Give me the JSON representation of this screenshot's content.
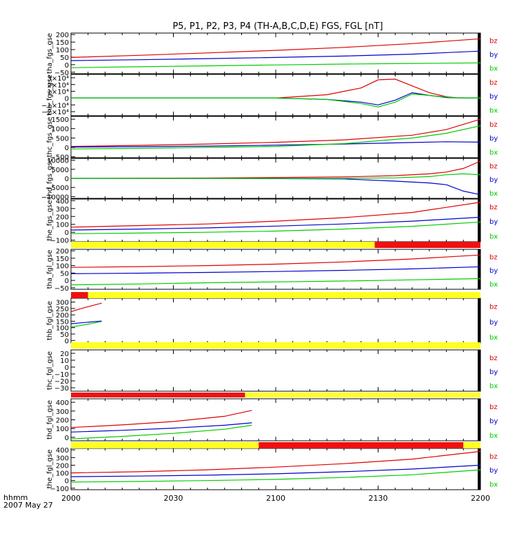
{
  "title": "P5, P1, P2, P3, P4 (TH-A,B,C,D,E) FGS, FGL [nT]",
  "time_axis": {
    "unit_label": "hhmm",
    "date_label": "2007 May 27",
    "ticks": [
      "2000",
      "2030",
      "2100",
      "2130",
      "2200"
    ]
  },
  "colors": {
    "bx": "#00cc00",
    "by": "#0000cc",
    "bz": "#dd0000",
    "bar_yellow": "#ffff22",
    "bar_red": "#ee1111"
  },
  "chart_data": [
    {
      "type": "line",
      "ylabel": "tha_fgs_gse",
      "ylim": [
        -60,
        210
      ],
      "yticks": [
        200,
        150,
        100,
        50,
        0,
        -50
      ],
      "ytick_labels": [
        "200",
        "150",
        "100",
        "50",
        "0",
        "−50"
      ],
      "x_minutes": [
        0,
        20,
        40,
        60,
        80,
        100,
        120
      ],
      "series": [
        {
          "name": "bz",
          "values": [
            48,
            62,
            78,
            95,
            115,
            140,
            172
          ]
        },
        {
          "name": "by",
          "values": [
            27,
            33,
            40,
            48,
            57,
            70,
            90
          ]
        },
        {
          "name": "bx",
          "values": [
            -20,
            -14,
            -8,
            -2,
            4,
            8,
            12
          ]
        }
      ]
    },
    {
      "type": "line",
      "ylabel": "thb_fgs_gse",
      "ylim": [
        -26000,
        35000
      ],
      "yticks": [
        30000,
        20000,
        10000,
        0,
        -10000,
        -20000
      ],
      "ytick_labels": [
        "3×10⁴",
        "2×10⁴",
        "1×10⁴",
        "0",
        "−1×10⁴",
        "−2×10⁴"
      ],
      "x_minutes": [
        0,
        30,
        60,
        75,
        85,
        90,
        95,
        100,
        105,
        110,
        113,
        120
      ],
      "series": [
        {
          "name": "bz",
          "values": [
            0,
            0,
            0,
            5000,
            15000,
            27000,
            28000,
            18000,
            8000,
            2000,
            500,
            0
          ]
        },
        {
          "name": "by",
          "values": [
            0,
            0,
            0,
            -2000,
            -6000,
            -10000,
            -3000,
            8000,
            4000,
            800,
            200,
            0
          ]
        },
        {
          "name": "bx",
          "values": [
            0,
            0,
            0,
            -2000,
            -8000,
            -13000,
            -6000,
            6000,
            4000,
            1500,
            400,
            0
          ]
        }
      ]
    },
    {
      "type": "line",
      "ylabel": "thc_fgs_gse",
      "ylim": [
        -550,
        1650
      ],
      "yticks": [
        1500,
        1000,
        500,
        0,
        -500
      ],
      "ytick_labels": [
        "1500",
        "1000",
        "500",
        "0",
        "−500"
      ],
      "x_minutes": [
        0,
        20,
        40,
        60,
        80,
        100,
        110,
        120
      ],
      "series": [
        {
          "name": "bz",
          "values": [
            50,
            110,
            180,
            270,
            400,
            650,
            950,
            1500
          ]
        },
        {
          "name": "by",
          "values": [
            20,
            40,
            70,
            120,
            180,
            260,
            300,
            280
          ]
        },
        {
          "name": "bx",
          "values": [
            -80,
            -50,
            0,
            50,
            200,
            500,
            750,
            1150
          ]
        }
      ]
    },
    {
      "type": "line",
      "ylabel": "thd_fgs_gse",
      "ylim": [
        -11000,
        11000
      ],
      "yticks": [
        10000,
        5000,
        0,
        -5000,
        -10000
      ],
      "ytick_labels": [
        "10000",
        "5000",
        "0",
        "−5000",
        "−10000"
      ],
      "x_minutes": [
        0,
        40,
        80,
        95,
        105,
        110,
        115,
        120
      ],
      "series": [
        {
          "name": "bz",
          "values": [
            0,
            200,
            800,
            1500,
            2500,
            3500,
            5500,
            9500
          ]
        },
        {
          "name": "by",
          "values": [
            0,
            0,
            -300,
            -1500,
            -2500,
            -3500,
            -7000,
            -9000
          ]
        },
        {
          "name": "bx",
          "values": [
            0,
            0,
            0,
            300,
            1000,
            2000,
            2500,
            2000
          ]
        }
      ]
    },
    {
      "type": "line",
      "ylabel": "the_fgs_gse",
      "ylim": [
        -120,
        420
      ],
      "yticks": [
        400,
        300,
        200,
        100,
        0,
        -100
      ],
      "ytick_labels": [
        "400",
        "300",
        "200",
        "100",
        "0",
        "−100"
      ],
      "x_minutes": [
        0,
        20,
        40,
        60,
        80,
        100,
        120
      ],
      "series": [
        {
          "name": "bz",
          "values": [
            65,
            85,
            105,
            140,
            185,
            250,
            380
          ]
        },
        {
          "name": "by",
          "values": [
            28,
            40,
            55,
            78,
            105,
            140,
            190
          ]
        },
        {
          "name": "bx",
          "values": [
            -18,
            -10,
            0,
            15,
            40,
            75,
            130
          ]
        }
      ]
    },
    {
      "type": "line",
      "ylabel": "tha_fgl_gse",
      "ylim": [
        -60,
        210
      ],
      "yticks": [
        200,
        150,
        100,
        50,
        0,
        -50
      ],
      "ytick_labels": [
        "200",
        "150",
        "100",
        "50",
        "0",
        "−50"
      ],
      "x_minutes": [
        0,
        20,
        40,
        60,
        80,
        100,
        120
      ],
      "series": [
        {
          "name": "bz",
          "values": [
            88,
            93,
            100,
            110,
            125,
            145,
            172
          ]
        },
        {
          "name": "by",
          "values": [
            45,
            49,
            54,
            60,
            68,
            78,
            92
          ]
        },
        {
          "name": "bx",
          "values": [
            -30,
            -24,
            -16,
            -10,
            -4,
            4,
            12
          ]
        }
      ]
    },
    {
      "type": "line",
      "ylabel": "thb_fgl_gse",
      "ylim": [
        -20,
        330
      ],
      "yticks": [
        300,
        250,
        200,
        150,
        100,
        50,
        0
      ],
      "ytick_labels": [
        "300",
        "250",
        "200",
        "150",
        "100",
        "50",
        "0"
      ],
      "x_minutes": [
        0,
        3,
        6,
        9
      ],
      "series": [
        {
          "name": "bz",
          "values": [
            225,
            250,
            270,
            292
          ]
        },
        {
          "name": "by",
          "values": [
            130,
            138,
            145,
            152
          ]
        },
        {
          "name": "bx",
          "values": [
            105,
            118,
            132,
            148
          ]
        }
      ]
    },
    {
      "type": "line",
      "ylabel": "thc_fgl_gse",
      "ylim": [
        -35,
        25
      ],
      "yticks": [
        20,
        10,
        0,
        -10,
        -20,
        -30
      ],
      "ytick_labels": [
        "20",
        "10",
        "0",
        "−10",
        "−20",
        "−30"
      ],
      "x_minutes": [],
      "series": [
        {
          "name": "bz",
          "values": []
        },
        {
          "name": "by",
          "values": []
        },
        {
          "name": "bx",
          "values": []
        }
      ]
    },
    {
      "type": "line",
      "ylabel": "thd_fgl_gse",
      "ylim": [
        -40,
        440
      ],
      "yticks": [
        400,
        300,
        200,
        100,
        0
      ],
      "ytick_labels": [
        "400",
        "300",
        "200",
        "100",
        "0"
      ],
      "x_minutes": [
        0,
        15,
        30,
        45,
        53
      ],
      "series": [
        {
          "name": "bz",
          "values": [
            112,
            142,
            180,
            240,
            308
          ]
        },
        {
          "name": "by",
          "values": [
            60,
            80,
            105,
            138,
            165
          ]
        },
        {
          "name": "bx",
          "values": [
            -18,
            10,
            45,
            92,
            138
          ]
        }
      ]
    },
    {
      "type": "line",
      "ylabel": "the_fgl_gse",
      "ylim": [
        -120,
        420
      ],
      "yticks": [
        400,
        300,
        200,
        100,
        0,
        -100
      ],
      "ytick_labels": [
        "400",
        "300",
        "200",
        "100",
        "0",
        "−100"
      ],
      "x_minutes": [
        0,
        20,
        40,
        60,
        80,
        100,
        120
      ],
      "series": [
        {
          "name": "bz",
          "values": [
            100,
            115,
            140,
            175,
            220,
            280,
            380
          ]
        },
        {
          "name": "by",
          "values": [
            50,
            58,
            70,
            88,
            115,
            150,
            200
          ]
        },
        {
          "name": "bx",
          "values": [
            -20,
            -12,
            0,
            15,
            40,
            75,
            140
          ]
        }
      ]
    }
  ],
  "status_bars": [
    [
      {
        "from": 0,
        "to": 89,
        "color": "yellow"
      },
      {
        "from": 89,
        "to": 120,
        "color": "red"
      }
    ],
    [
      {
        "from": 0,
        "to": 5,
        "color": "red"
      },
      {
        "from": 5,
        "to": 120,
        "color": "yellow"
      }
    ],
    [
      {
        "from": 0,
        "to": 120,
        "color": "yellow"
      }
    ],
    [
      {
        "from": 0,
        "to": 51,
        "color": "red"
      },
      {
        "from": 51,
        "to": 120,
        "color": "yellow"
      }
    ],
    [
      {
        "from": 0,
        "to": 55,
        "color": "yellow"
      },
      {
        "from": 55,
        "to": 115,
        "color": "red"
      },
      {
        "from": 115,
        "to": 120,
        "color": "yellow"
      }
    ]
  ]
}
